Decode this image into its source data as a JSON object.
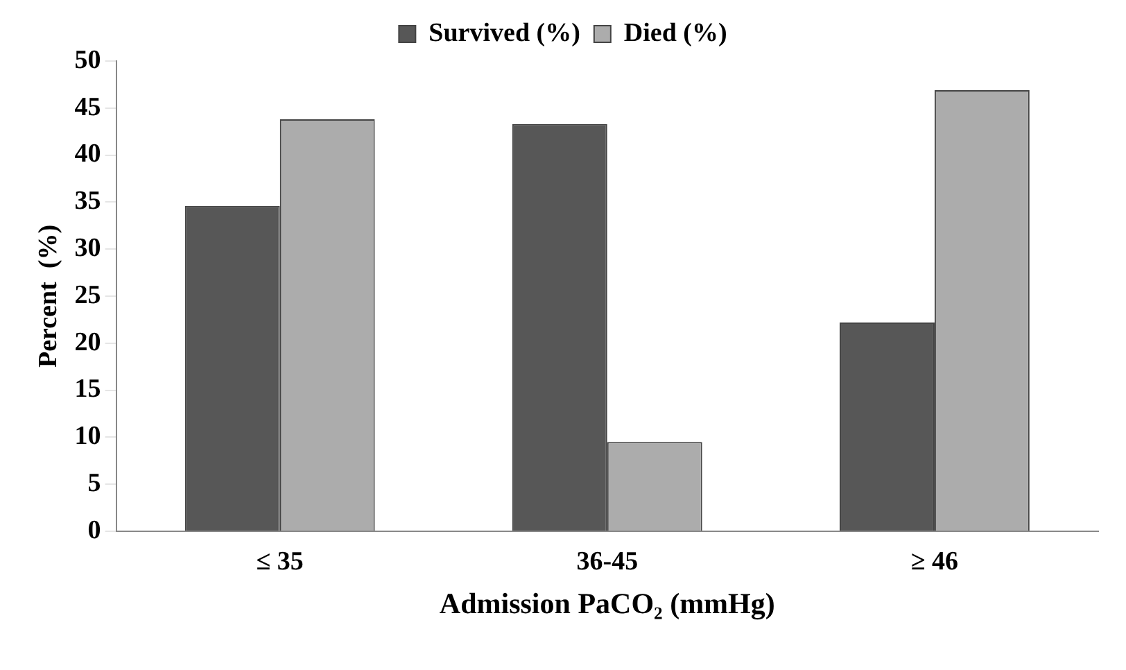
{
  "chart_data": {
    "type": "bar",
    "categories": [
      "≤ 35",
      "36-45",
      "≥ 46"
    ],
    "series": [
      {
        "name": "Survived (%)",
        "color": "#575757",
        "values": [
          34.6,
          43.3,
          22.2
        ]
      },
      {
        "name": "Died (%)",
        "color": "#acacac",
        "values": [
          43.8,
          9.5,
          46.9
        ]
      }
    ],
    "xlabel": "Admission PaCO₂ (mmHg)",
    "ylabel": "Percent  (%)",
    "ylim": [
      0,
      50
    ],
    "yticks": [
      0,
      5,
      10,
      15,
      20,
      25,
      30,
      35,
      40,
      45,
      50
    ],
    "grid": false,
    "legend": "top"
  }
}
